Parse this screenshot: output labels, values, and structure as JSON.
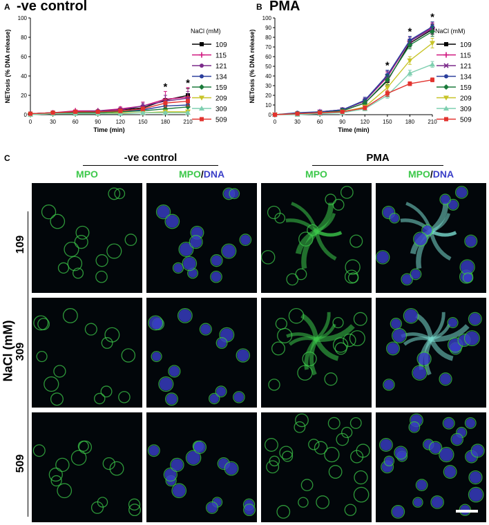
{
  "panels": {
    "A": {
      "letter": "A",
      "title": "-ve control"
    },
    "B": {
      "letter": "B",
      "title": "PMA"
    },
    "C": {
      "letter": "C"
    }
  },
  "chart_data": [
    {
      "type": "line",
      "title": "-ve control",
      "xlabel": "Time (min)",
      "ylabel": "NETosis (% DNA release)",
      "xlim": [
        0,
        210
      ],
      "ylim": [
        0,
        100
      ],
      "x": [
        0,
        30,
        60,
        90,
        120,
        150,
        180,
        210
      ],
      "xticks": [
        "0",
        "30",
        "60",
        "90",
        "120",
        "150",
        "180",
        "210"
      ],
      "yticks": [
        "0",
        "20",
        "40",
        "60",
        "80",
        "100"
      ],
      "legend_title": "NaCl (mM)",
      "legend_position": "right",
      "annotations": [
        {
          "x": 180,
          "text": "*"
        },
        {
          "x": 210,
          "text": "*"
        }
      ],
      "series": [
        {
          "name": "109",
          "color": "#000000",
          "marker": "square",
          "values": [
            1,
            2,
            3,
            3,
            5,
            7,
            15,
            20
          ],
          "err": [
            1,
            1,
            1,
            1,
            2,
            3,
            5,
            7
          ]
        },
        {
          "name": "115",
          "color": "#d0167f",
          "marker": "plus",
          "values": [
            1,
            2,
            4,
            4,
            6,
            9,
            16,
            18
          ],
          "err": [
            1,
            1,
            1,
            1,
            2,
            4,
            8,
            10
          ]
        },
        {
          "name": "121",
          "color": "#7b2a8a",
          "marker": "circle",
          "values": [
            1,
            2,
            3,
            4,
            5,
            9,
            14,
            17
          ],
          "err": [
            1,
            1,
            1,
            1,
            2,
            3,
            6,
            7
          ]
        },
        {
          "name": "134",
          "color": "#2a3e9c",
          "marker": "circle",
          "values": [
            1,
            2,
            3,
            3,
            4,
            5,
            9,
            10
          ],
          "err": [
            1,
            1,
            1,
            1,
            1,
            2,
            4,
            5
          ]
        },
        {
          "name": "159",
          "color": "#1a7a3a",
          "marker": "diamond",
          "values": [
            1,
            1,
            2,
            2,
            3,
            4,
            6,
            8
          ],
          "err": [
            1,
            1,
            1,
            1,
            1,
            2,
            3,
            4
          ]
        },
        {
          "name": "209",
          "color": "#c8c428",
          "marker": "triangle-down",
          "values": [
            0,
            1,
            1,
            1,
            2,
            2,
            3,
            3
          ],
          "err": [
            1,
            1,
            1,
            1,
            1,
            1,
            2,
            2
          ]
        },
        {
          "name": "309",
          "color": "#7fcfb0",
          "marker": "triangle",
          "values": [
            0,
            1,
            1,
            1,
            1,
            2,
            2,
            2
          ],
          "err": [
            1,
            1,
            1,
            1,
            1,
            1,
            1,
            1
          ]
        },
        {
          "name": "509",
          "color": "#e2332e",
          "marker": "square",
          "values": [
            1,
            2,
            3,
            3,
            4,
            6,
            12,
            14
          ],
          "err": [
            1,
            1,
            1,
            1,
            2,
            2,
            4,
            5
          ]
        }
      ]
    },
    {
      "type": "line",
      "title": "PMA",
      "xlabel": "Time (min)",
      "ylabel": "NETosis (% DNA release)",
      "xlim": [
        0,
        210
      ],
      "ylim": [
        0,
        100
      ],
      "x": [
        0,
        30,
        60,
        90,
        120,
        150,
        180,
        210
      ],
      "xticks": [
        "0",
        "30",
        "60",
        "90",
        "120",
        "150",
        "180",
        "210"
      ],
      "yticks": [
        "0",
        "10",
        "20",
        "30",
        "40",
        "50",
        "60",
        "70",
        "80",
        "90",
        "100"
      ],
      "legend_title": "NaCl (mM)",
      "legend_position": "right",
      "annotations": [
        {
          "x": 150,
          "text": "*"
        },
        {
          "x": 180,
          "text": "*"
        },
        {
          "x": 210,
          "text": "*"
        }
      ],
      "series": [
        {
          "name": "109",
          "color": "#000000",
          "marker": "square",
          "values": [
            0,
            1,
            2,
            4,
            12,
            35,
            74,
            88
          ],
          "err": [
            1,
            1,
            1,
            2,
            3,
            5,
            4,
            5
          ]
        },
        {
          "name": "115",
          "color": "#d0167f",
          "marker": "plus",
          "values": [
            0,
            1,
            3,
            5,
            14,
            39,
            76,
            90
          ],
          "err": [
            1,
            1,
            1,
            2,
            3,
            5,
            4,
            5
          ]
        },
        {
          "name": "121",
          "color": "#7b2a8a",
          "marker": "x",
          "values": [
            0,
            1,
            3,
            5,
            14,
            40,
            76,
            89
          ],
          "err": [
            1,
            1,
            1,
            2,
            3,
            5,
            4,
            5
          ]
        },
        {
          "name": "134",
          "color": "#2a3e9c",
          "marker": "circle",
          "values": [
            0,
            2,
            3,
            5,
            15,
            41,
            77,
            91
          ],
          "err": [
            1,
            1,
            1,
            2,
            3,
            5,
            4,
            5
          ]
        },
        {
          "name": "159",
          "color": "#1a7a3a",
          "marker": "diamond",
          "values": [
            0,
            1,
            2,
            4,
            12,
            36,
            72,
            86
          ],
          "err": [
            1,
            1,
            1,
            2,
            3,
            5,
            4,
            5
          ]
        },
        {
          "name": "209",
          "color": "#c8c428",
          "marker": "triangle-down",
          "values": [
            0,
            1,
            2,
            3,
            8,
            28,
            56,
            74
          ],
          "err": [
            1,
            1,
            1,
            1,
            2,
            4,
            4,
            5
          ]
        },
        {
          "name": "309",
          "color": "#7fcfb0",
          "marker": "triangle",
          "values": [
            0,
            0,
            1,
            2,
            6,
            20,
            43,
            52
          ],
          "err": [
            1,
            1,
            1,
            1,
            2,
            3,
            3,
            3
          ]
        },
        {
          "name": "509",
          "color": "#e2332e",
          "marker": "square",
          "values": [
            0,
            1,
            2,
            3,
            7,
            22,
            32,
            36
          ],
          "err": [
            1,
            1,
            1,
            1,
            2,
            3,
            2,
            2
          ]
        }
      ]
    }
  ],
  "micrographs": {
    "groups": [
      "-ve control",
      "PMA"
    ],
    "column_labels": [
      {
        "a": "MPO",
        "slash": "",
        "b": ""
      },
      {
        "a": "MPO",
        "slash": "/",
        "b": "DNA"
      },
      {
        "a": "MPO",
        "slash": "",
        "b": ""
      },
      {
        "a": "MPO",
        "slash": "/",
        "b": "DNA"
      }
    ],
    "row_labels": [
      "109",
      "309",
      "509"
    ],
    "axis_label": "NaCl (mM)",
    "colors": {
      "mpo": "#3cc84a",
      "dna": "#3a3fc8",
      "net": "#7adcd0"
    }
  }
}
